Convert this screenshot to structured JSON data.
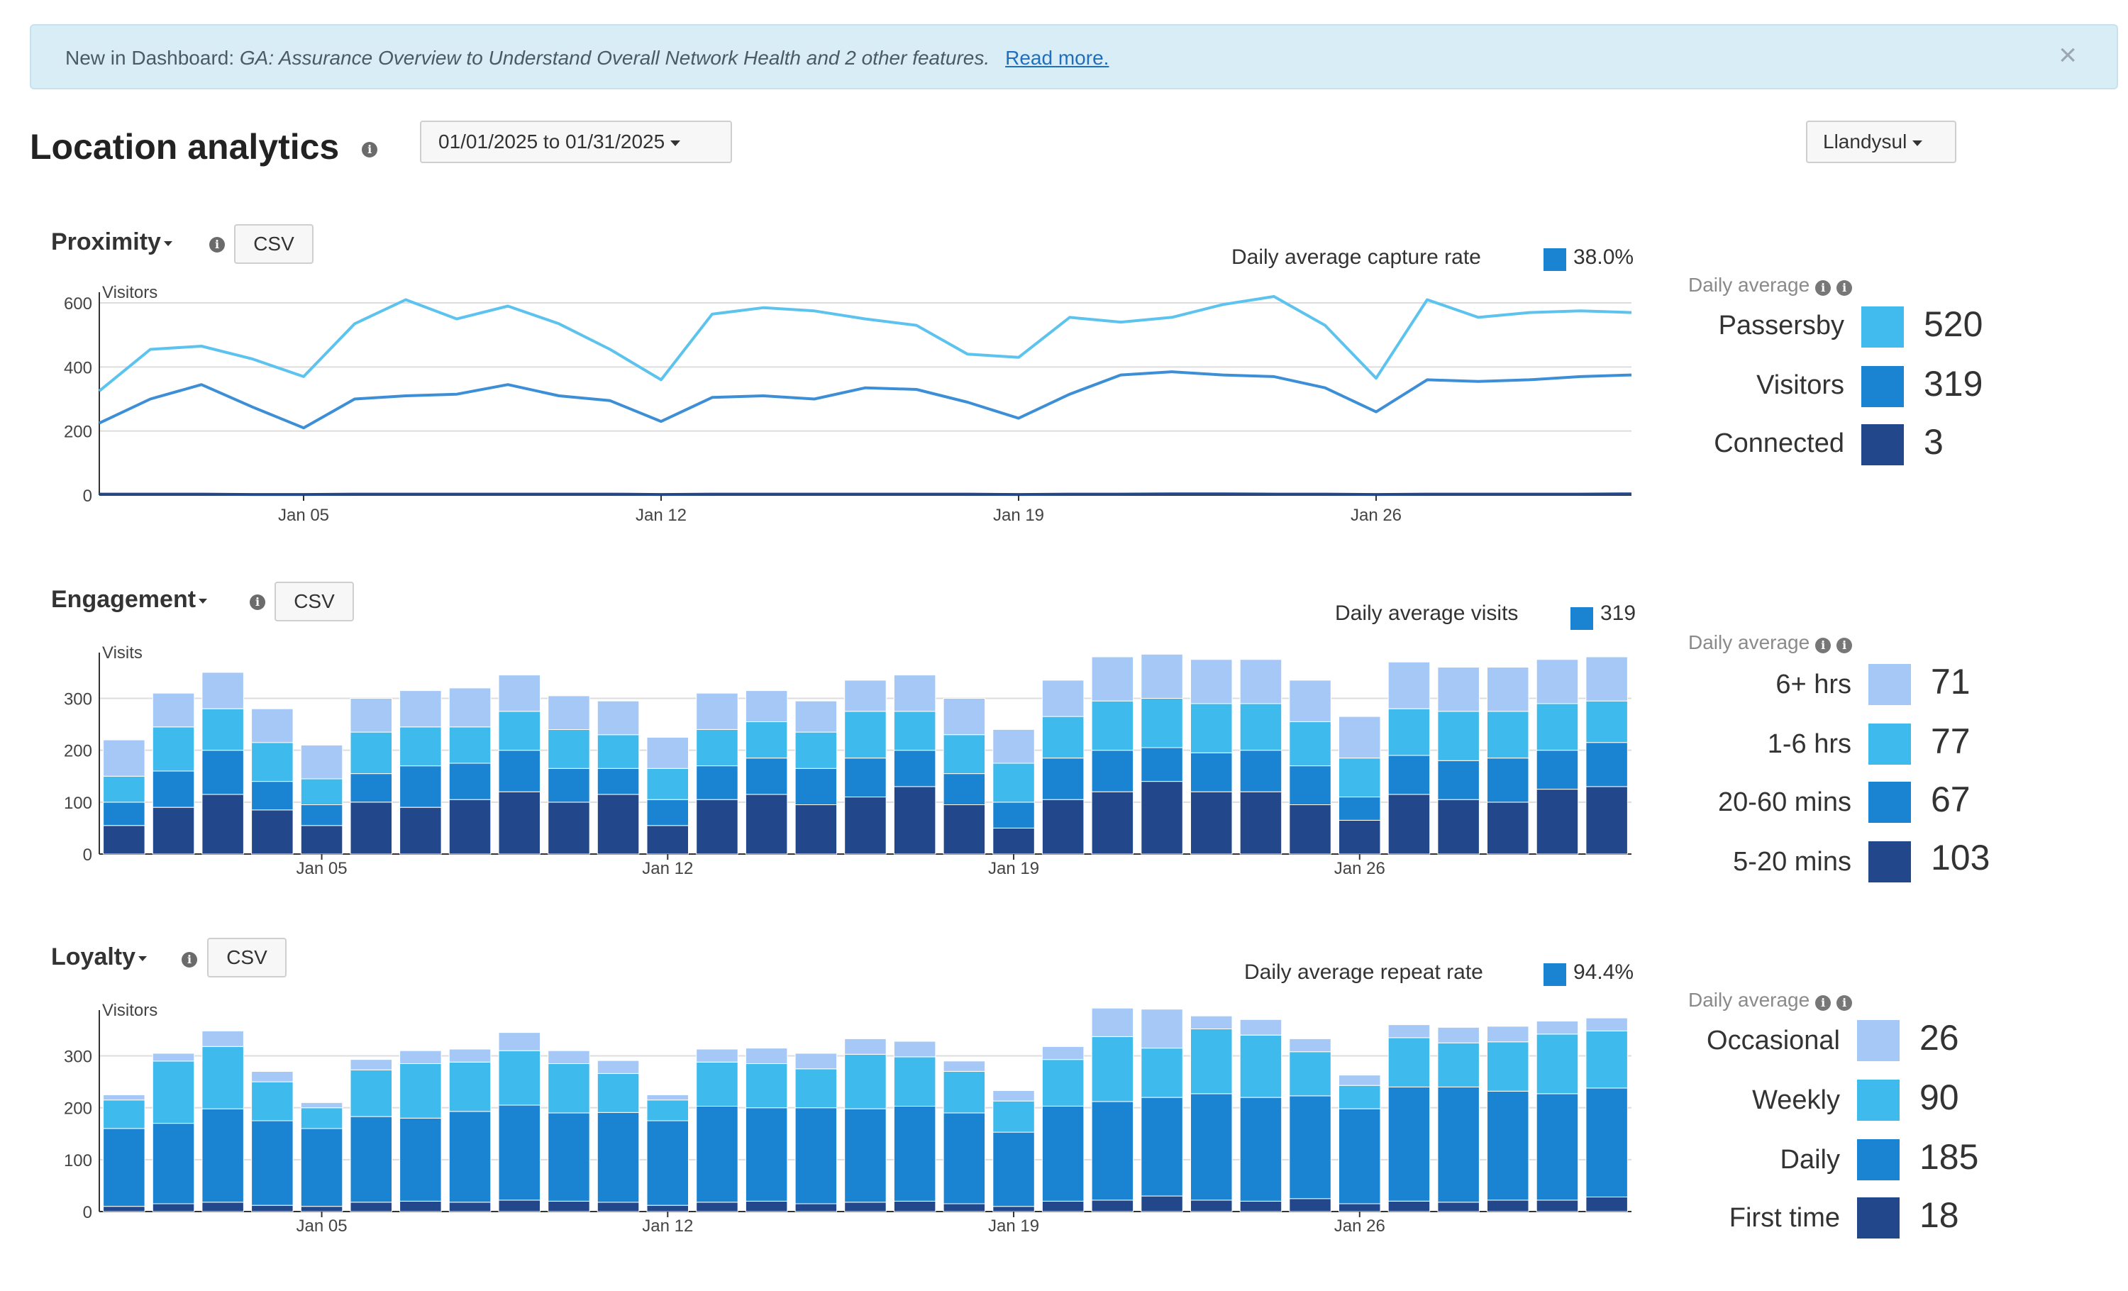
{
  "banner": {
    "prefix": "New in Dashboard: ",
    "italic": "GA: Assurance Overview to Understand Overall Network Health and 2 other features.",
    "link": "Read more.",
    "close": "×"
  },
  "page": {
    "title": "Location analytics",
    "date_range": "01/01/2025 to 01/31/2025",
    "location": "Llandysul"
  },
  "proximity": {
    "title": "Proximity",
    "csv": "CSV",
    "avg_label": "Daily average capture rate",
    "avg_value": "38.0%",
    "side_title": "Daily average",
    "legend": [
      {
        "label": "Passersby",
        "value": "520",
        "color": "#41bbee"
      },
      {
        "label": "Visitors",
        "value": "319",
        "color": "#1b84d2"
      },
      {
        "label": "Connected",
        "value": "3",
        "color": "#22478a"
      }
    ]
  },
  "engagement": {
    "title": "Engagement",
    "csv": "CSV",
    "avg_label": "Daily average visits",
    "avg_value": "319",
    "side_title": "Daily average",
    "legend": [
      {
        "label": "6+ hrs",
        "value": "71",
        "color": "#a6c8f6"
      },
      {
        "label": "1-6 hrs",
        "value": "77",
        "color": "#3fbaec"
      },
      {
        "label": "20-60 mins",
        "value": "67",
        "color": "#1b84d2"
      },
      {
        "label": "5-20 mins",
        "value": "103",
        "color": "#22478a"
      }
    ]
  },
  "loyalty": {
    "title": "Loyalty",
    "csv": "CSV",
    "avg_label": "Daily average repeat rate",
    "avg_value": "94.4%",
    "side_title": "Daily average",
    "legend": [
      {
        "label": "Occasional",
        "value": "26",
        "color": "#a6c8f6"
      },
      {
        "label": "Weekly",
        "value": "90",
        "color": "#3fbaec"
      },
      {
        "label": "Daily",
        "value": "185",
        "color": "#1b84d2"
      },
      {
        "label": "First time",
        "value": "18",
        "color": "#22478a"
      }
    ]
  },
  "chart_data": [
    {
      "type": "line",
      "ylabel": "Visitors",
      "ylim": [
        0,
        620
      ],
      "yticks": [
        0,
        200,
        400,
        600
      ],
      "x": [
        "Jan 01",
        "Jan 02",
        "Jan 03",
        "Jan 04",
        "Jan 05",
        "Jan 06",
        "Jan 07",
        "Jan 08",
        "Jan 09",
        "Jan 10",
        "Jan 11",
        "Jan 12",
        "Jan 13",
        "Jan 14",
        "Jan 15",
        "Jan 16",
        "Jan 17",
        "Jan 18",
        "Jan 19",
        "Jan 20",
        "Jan 21",
        "Jan 22",
        "Jan 23",
        "Jan 24",
        "Jan 25",
        "Jan 26",
        "Jan 27",
        "Jan 28",
        "Jan 29",
        "Jan 30",
        "Jan 31"
      ],
      "xtick_labels": [
        "Jan 05",
        "Jan 12",
        "Jan 19",
        "Jan 26"
      ],
      "series": [
        {
          "name": "Passersby",
          "color": "#5cc3ee",
          "values": [
            325,
            455,
            465,
            425,
            370,
            535,
            610,
            550,
            590,
            535,
            455,
            360,
            565,
            585,
            575,
            550,
            530,
            440,
            430,
            555,
            540,
            555,
            595,
            620,
            530,
            365,
            610,
            555,
            570,
            575,
            570
          ]
        },
        {
          "name": "Visitors",
          "color": "#3c8fd6",
          "values": [
            225,
            300,
            345,
            275,
            210,
            300,
            310,
            315,
            345,
            310,
            295,
            230,
            305,
            310,
            300,
            335,
            330,
            290,
            240,
            315,
            375,
            385,
            375,
            370,
            335,
            260,
            360,
            355,
            360,
            370,
            375
          ]
        },
        {
          "name": "Connected",
          "color": "#22478a",
          "values": [
            3,
            3,
            3,
            2,
            2,
            3,
            3,
            3,
            3,
            3,
            3,
            2,
            3,
            3,
            3,
            3,
            3,
            3,
            2,
            3,
            3,
            4,
            4,
            3,
            3,
            2,
            3,
            3,
            3,
            3,
            4
          ]
        }
      ]
    },
    {
      "type": "bar",
      "stacked": true,
      "ylabel": "Visits",
      "ylim": [
        0,
        380
      ],
      "yticks": [
        0,
        100,
        200,
        300
      ],
      "x": [
        "Jan 01",
        "Jan 02",
        "Jan 03",
        "Jan 04",
        "Jan 05",
        "Jan 06",
        "Jan 07",
        "Jan 08",
        "Jan 09",
        "Jan 10",
        "Jan 11",
        "Jan 12",
        "Jan 13",
        "Jan 14",
        "Jan 15",
        "Jan 16",
        "Jan 17",
        "Jan 18",
        "Jan 19",
        "Jan 20",
        "Jan 21",
        "Jan 22",
        "Jan 23",
        "Jan 24",
        "Jan 25",
        "Jan 26",
        "Jan 27",
        "Jan 28",
        "Jan 29",
        "Jan 30",
        "Jan 31"
      ],
      "xtick_labels": [
        "Jan 05",
        "Jan 12",
        "Jan 19",
        "Jan 26"
      ],
      "series": [
        {
          "name": "5-20 mins",
          "color": "#22478a",
          "values": [
            55,
            90,
            115,
            85,
            55,
            100,
            90,
            105,
            120,
            100,
            115,
            55,
            105,
            115,
            95,
            110,
            130,
            95,
            50,
            105,
            120,
            140,
            120,
            120,
            95,
            65,
            115,
            105,
            100,
            125,
            130
          ]
        },
        {
          "name": "20-60 mins",
          "color": "#1b84d2",
          "values": [
            45,
            70,
            85,
            55,
            40,
            55,
            80,
            70,
            80,
            65,
            50,
            50,
            65,
            70,
            70,
            75,
            70,
            60,
            50,
            80,
            80,
            65,
            75,
            80,
            75,
            45,
            75,
            75,
            85,
            75,
            85
          ]
        },
        {
          "name": "1-6 hrs",
          "color": "#3fbaec",
          "values": [
            50,
            85,
            80,
            75,
            50,
            80,
            75,
            70,
            75,
            75,
            65,
            60,
            70,
            70,
            70,
            90,
            75,
            75,
            75,
            80,
            95,
            95,
            95,
            90,
            85,
            75,
            90,
            95,
            90,
            90,
            80
          ]
        },
        {
          "name": "6+ hrs",
          "color": "#a6c8f6",
          "values": [
            70,
            65,
            70,
            65,
            65,
            65,
            70,
            75,
            70,
            65,
            65,
            60,
            70,
            60,
            60,
            60,
            70,
            70,
            65,
            70,
            85,
            85,
            85,
            85,
            80,
            80,
            90,
            85,
            85,
            85,
            85
          ]
        }
      ]
    },
    {
      "type": "bar",
      "stacked": true,
      "ylabel": "Visitors",
      "ylim": [
        0,
        380
      ],
      "yticks": [
        0,
        100,
        200,
        300
      ],
      "x": [
        "Jan 01",
        "Jan 02",
        "Jan 03",
        "Jan 04",
        "Jan 05",
        "Jan 06",
        "Jan 07",
        "Jan 08",
        "Jan 09",
        "Jan 10",
        "Jan 11",
        "Jan 12",
        "Jan 13",
        "Jan 14",
        "Jan 15",
        "Jan 16",
        "Jan 17",
        "Jan 18",
        "Jan 19",
        "Jan 20",
        "Jan 21",
        "Jan 22",
        "Jan 23",
        "Jan 24",
        "Jan 25",
        "Jan 26",
        "Jan 27",
        "Jan 28",
        "Jan 29",
        "Jan 30",
        "Jan 31"
      ],
      "xtick_labels": [
        "Jan 05",
        "Jan 12",
        "Jan 19",
        "Jan 26"
      ],
      "series": [
        {
          "name": "First time",
          "color": "#22478a",
          "values": [
            10,
            15,
            18,
            12,
            10,
            18,
            20,
            18,
            22,
            20,
            18,
            12,
            18,
            20,
            15,
            18,
            20,
            15,
            10,
            20,
            22,
            30,
            22,
            20,
            25,
            15,
            20,
            18,
            22,
            22,
            28
          ]
        },
        {
          "name": "Daily",
          "color": "#1b84d2",
          "values": [
            150,
            155,
            180,
            163,
            150,
            165,
            160,
            175,
            183,
            170,
            173,
            163,
            185,
            180,
            185,
            180,
            183,
            175,
            143,
            183,
            190,
            190,
            205,
            200,
            198,
            183,
            220,
            222,
            210,
            205,
            210
          ]
        },
        {
          "name": "Weekly",
          "color": "#3fbaec",
          "values": [
            55,
            120,
            120,
            75,
            40,
            90,
            105,
            95,
            105,
            95,
            75,
            40,
            85,
            85,
            75,
            105,
            95,
            80,
            60,
            90,
            125,
            95,
            125,
            120,
            85,
            45,
            95,
            85,
            95,
            115,
            110
          ]
        },
        {
          "name": "Occasional",
          "color": "#a6c8f6",
          "values": [
            10,
            15,
            30,
            20,
            10,
            20,
            25,
            25,
            35,
            25,
            25,
            10,
            25,
            30,
            30,
            30,
            30,
            20,
            20,
            25,
            55,
            75,
            25,
            30,
            25,
            20,
            25,
            30,
            30,
            25,
            25
          ]
        }
      ]
    }
  ]
}
